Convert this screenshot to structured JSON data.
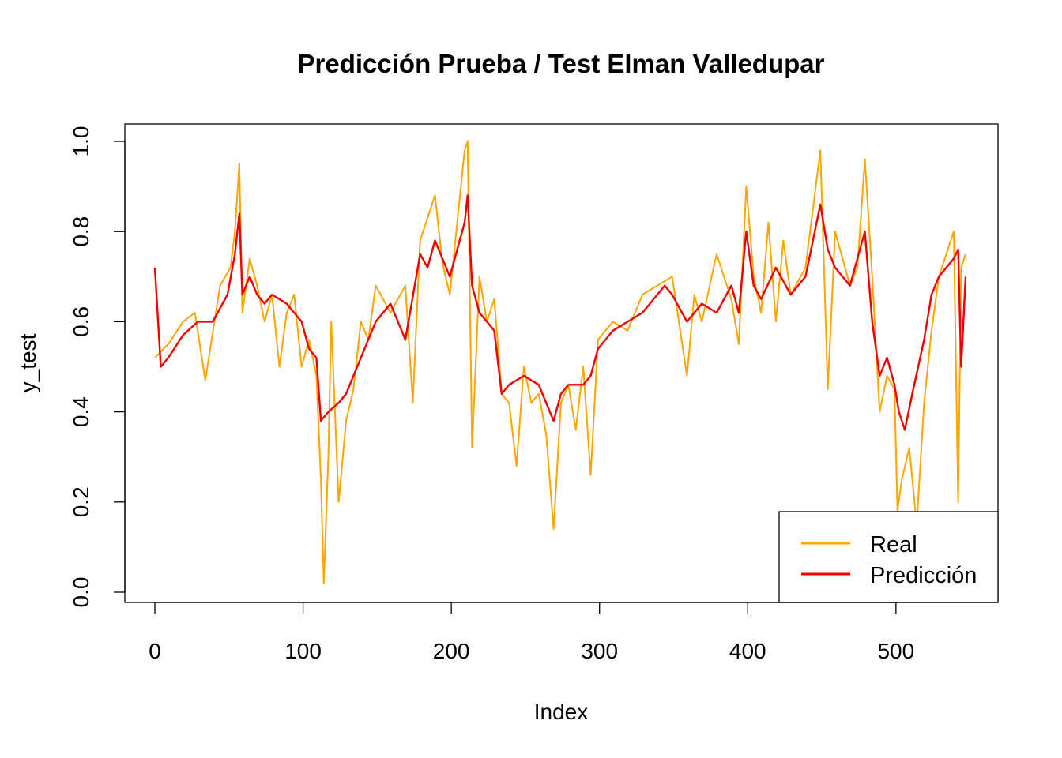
{
  "chart_data": {
    "type": "line",
    "title": "Predicción Prueba / Test Elman Valledupar",
    "xlabel": "Index",
    "ylabel": "y_test",
    "xlim": [
      0,
      548
    ],
    "ylim": [
      0,
      1
    ],
    "x_ticks": [
      0,
      100,
      200,
      300,
      400,
      500
    ],
    "y_ticks": [
      0.0,
      0.2,
      0.4,
      0.6,
      0.8,
      1.0
    ],
    "x_tick_labels": [
      "0",
      "100",
      "200",
      "300",
      "400",
      "500"
    ],
    "y_tick_labels": [
      "0.0",
      "0.2",
      "0.4",
      "0.6",
      "0.8",
      "1.0"
    ],
    "grid": false,
    "legend": {
      "position": "bottom-right",
      "entries": [
        "Real",
        "Predicción"
      ]
    },
    "series": [
      {
        "name": "Real",
        "color": "#FFA500",
        "x": [
          1,
          10,
          20,
          28,
          35,
          45,
          52,
          55,
          58,
          60,
          65,
          70,
          75,
          80,
          85,
          90,
          95,
          100,
          105,
          110,
          113,
          115,
          118,
          120,
          125,
          130,
          135,
          140,
          145,
          150,
          160,
          170,
          175,
          180,
          190,
          195,
          200,
          205,
          210,
          212,
          215,
          220,
          225,
          230,
          235,
          240,
          245,
          250,
          255,
          260,
          265,
          270,
          275,
          280,
          285,
          290,
          295,
          300,
          305,
          310,
          320,
          330,
          340,
          350,
          360,
          365,
          370,
          380,
          390,
          395,
          400,
          405,
          410,
          415,
          420,
          425,
          430,
          440,
          450,
          455,
          460,
          470,
          475,
          480,
          485,
          490,
          495,
          500,
          502,
          505,
          510,
          515,
          520,
          525,
          530,
          535,
          540,
          543,
          545,
          548
        ],
        "y": [
          0.52,
          0.55,
          0.6,
          0.62,
          0.47,
          0.68,
          0.72,
          0.8,
          0.95,
          0.62,
          0.74,
          0.68,
          0.6,
          0.66,
          0.5,
          0.62,
          0.66,
          0.5,
          0.56,
          0.48,
          0.25,
          0.02,
          0.3,
          0.6,
          0.2,
          0.38,
          0.45,
          0.6,
          0.56,
          0.68,
          0.62,
          0.68,
          0.42,
          0.78,
          0.88,
          0.73,
          0.66,
          0.82,
          0.98,
          1.0,
          0.32,
          0.7,
          0.6,
          0.65,
          0.44,
          0.42,
          0.28,
          0.5,
          0.42,
          0.44,
          0.35,
          0.14,
          0.42,
          0.46,
          0.36,
          0.5,
          0.26,
          0.56,
          0.58,
          0.6,
          0.58,
          0.66,
          0.68,
          0.7,
          0.48,
          0.66,
          0.6,
          0.75,
          0.65,
          0.55,
          0.9,
          0.7,
          0.62,
          0.82,
          0.6,
          0.78,
          0.66,
          0.72,
          0.98,
          0.45,
          0.8,
          0.68,
          0.72,
          0.96,
          0.7,
          0.4,
          0.48,
          0.45,
          0.18,
          0.25,
          0.32,
          0.15,
          0.42,
          0.58,
          0.7,
          0.75,
          0.8,
          0.2,
          0.72,
          0.75
        ]
      },
      {
        "name": "Predicción",
        "color": "#EE0000",
        "x": [
          1,
          5,
          10,
          20,
          30,
          40,
          50,
          55,
          58,
          60,
          65,
          70,
          75,
          80,
          90,
          100,
          105,
          110,
          113,
          118,
          125,
          130,
          140,
          150,
          160,
          170,
          180,
          185,
          190,
          200,
          205,
          210,
          212,
          215,
          220,
          230,
          235,
          240,
          250,
          260,
          265,
          270,
          275,
          280,
          290,
          295,
          300,
          310,
          320,
          330,
          340,
          345,
          350,
          360,
          370,
          380,
          390,
          395,
          400,
          405,
          410,
          420,
          430,
          440,
          450,
          455,
          460,
          470,
          480,
          485,
          490,
          495,
          500,
          503,
          507,
          512,
          520,
          525,
          530,
          535,
          540,
          543,
          545,
          548
        ],
        "y": [
          0.72,
          0.5,
          0.52,
          0.57,
          0.6,
          0.6,
          0.66,
          0.75,
          0.84,
          0.66,
          0.7,
          0.66,
          0.64,
          0.66,
          0.64,
          0.6,
          0.54,
          0.52,
          0.38,
          0.4,
          0.42,
          0.44,
          0.52,
          0.6,
          0.64,
          0.56,
          0.75,
          0.72,
          0.78,
          0.7,
          0.76,
          0.82,
          0.88,
          0.68,
          0.62,
          0.58,
          0.44,
          0.46,
          0.48,
          0.46,
          0.42,
          0.38,
          0.44,
          0.46,
          0.46,
          0.48,
          0.54,
          0.58,
          0.6,
          0.62,
          0.66,
          0.68,
          0.66,
          0.6,
          0.64,
          0.62,
          0.68,
          0.62,
          0.8,
          0.68,
          0.65,
          0.72,
          0.66,
          0.7,
          0.86,
          0.76,
          0.72,
          0.68,
          0.8,
          0.6,
          0.48,
          0.52,
          0.46,
          0.4,
          0.36,
          0.44,
          0.56,
          0.66,
          0.7,
          0.72,
          0.74,
          0.76,
          0.5,
          0.7
        ]
      }
    ]
  }
}
